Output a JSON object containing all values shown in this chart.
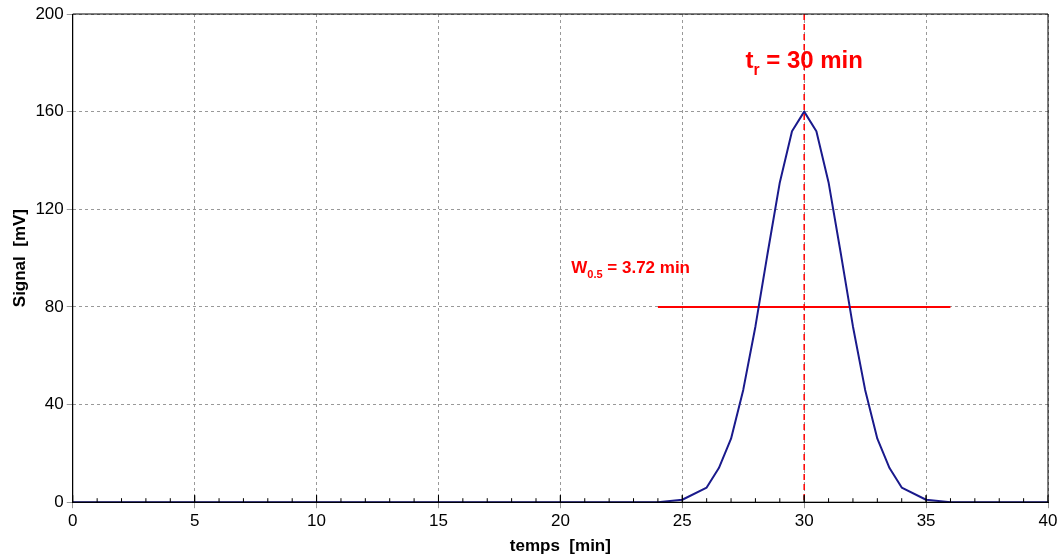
{
  "chart_data": {
    "type": "line",
    "xlabel": "temps  [min]",
    "ylabel": "Signal  [mV]",
    "xlim": [
      0,
      40
    ],
    "ylim": [
      0,
      200
    ],
    "xticks": [
      0,
      5,
      10,
      15,
      20,
      25,
      30,
      35,
      40
    ],
    "yticks": [
      0,
      40,
      80,
      120,
      160,
      200
    ],
    "grid": true,
    "legend": false,
    "marker": "none",
    "series": [
      {
        "color": "#1a1a8c",
        "x": [
          0,
          24,
          25,
          26,
          26.5,
          27,
          27.5,
          28,
          28.5,
          29,
          29.5,
          30,
          30.5,
          31,
          31.5,
          32,
          32.5,
          33,
          33.5,
          34,
          35,
          36,
          40
        ],
        "values": [
          0,
          0,
          1,
          6,
          14,
          26,
          46,
          72,
          102,
          131,
          152,
          160,
          152,
          131,
          102,
          72,
          46,
          26,
          14,
          6,
          1,
          0,
          0
        ]
      },
      {
        "type": "line",
        "color": "#ff0000",
        "x": [
          24,
          36
        ],
        "values": [
          80,
          80
        ]
      }
    ],
    "ref_lines": [
      {
        "axis": "x",
        "value": 30,
        "color": "#ff0000",
        "line_style": "dashed"
      }
    ],
    "annotations": [
      {
        "text": "t$_{r}$ = 30 min",
        "x": 30,
        "y": 178
      },
      "W$_{0.5}$ = 3.72 min"
    ]
  }
}
